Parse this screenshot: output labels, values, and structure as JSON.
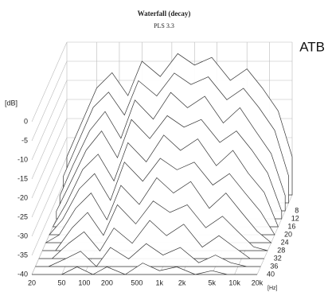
{
  "chart_data": {
    "type": "waterfall",
    "title": "Waterfall (decay)",
    "subtitle": "PLS 3.3",
    "watermark": "ATB",
    "y_label": "[dB]",
    "x_label": "[Hz]",
    "log_x": true,
    "xlim": [
      20,
      20000
    ],
    "ylim": [
      -40,
      0
    ],
    "zlim": [
      0,
      40
    ],
    "xticks": [
      20,
      50,
      100,
      200,
      500,
      {
        "value": 1000,
        "label": "1k"
      },
      {
        "value": 2000,
        "label": "2k"
      },
      {
        "value": 5000,
        "label": "5k"
      },
      {
        "value": 10000,
        "label": "10k"
      },
      {
        "value": 20000,
        "label": "20k"
      }
    ],
    "yticks": [
      0,
      -5,
      -10,
      -15,
      -20,
      -25,
      -30,
      -35,
      -40
    ],
    "zticks": [
      8,
      12,
      16,
      20,
      24,
      28,
      32,
      36,
      40
    ],
    "color": "#333333",
    "x": [
      20,
      30,
      50,
      80,
      130,
      200,
      350,
      600,
      1000,
      1700,
      3000,
      5000,
      8000,
      13000,
      20000
    ],
    "slices": [
      {
        "z": 0,
        "values": [
          -30,
          -22,
          -12,
          -8,
          -14,
          -5,
          -9,
          -3,
          -6,
          -4,
          -10,
          -7,
          -12,
          -18,
          -30
        ]
      },
      {
        "z": 4,
        "values": [
          -33,
          -25,
          -15,
          -11,
          -17,
          -8,
          -12,
          -6,
          -9,
          -7,
          -13,
          -10,
          -15,
          -21,
          -33
        ]
      },
      {
        "z": 8,
        "values": [
          -36,
          -28,
          -19,
          -14,
          -21,
          -11,
          -16,
          -9,
          -13,
          -10,
          -17,
          -13,
          -19,
          -25,
          -36
        ]
      },
      {
        "z": 12,
        "values": [
          -38,
          -31,
          -22,
          -17,
          -24,
          -14,
          -19,
          -13,
          -16,
          -14,
          -20,
          -17,
          -22,
          -28,
          -38
        ]
      },
      {
        "z": 16,
        "values": [
          -40,
          -34,
          -25,
          -21,
          -28,
          -18,
          -23,
          -16,
          -20,
          -17,
          -24,
          -20,
          -26,
          -31,
          -40
        ]
      },
      {
        "z": 20,
        "values": [
          -40,
          -36,
          -28,
          -24,
          -31,
          -21,
          -26,
          -20,
          -23,
          -21,
          -27,
          -24,
          -29,
          -34,
          -40
        ]
      },
      {
        "z": 24,
        "values": [
          -40,
          -38,
          -31,
          -27,
          -34,
          -25,
          -30,
          -23,
          -27,
          -24,
          -31,
          -27,
          -32,
          -37,
          -40
        ]
      },
      {
        "z": 28,
        "values": [
          -40,
          -40,
          -34,
          -30,
          -36,
          -28,
          -33,
          -27,
          -30,
          -28,
          -34,
          -31,
          -35,
          -39,
          -40
        ]
      },
      {
        "z": 32,
        "values": [
          -40,
          -40,
          -36,
          -33,
          -38,
          -32,
          -36,
          -30,
          -34,
          -31,
          -37,
          -34,
          -37,
          -40,
          -40
        ]
      },
      {
        "z": 36,
        "values": [
          -40,
          -40,
          -38,
          -36,
          -40,
          -35,
          -38,
          -34,
          -37,
          -35,
          -39,
          -37,
          -39,
          -40,
          -40
        ]
      },
      {
        "z": 40,
        "values": [
          -40,
          -40,
          -40,
          -38,
          -40,
          -38,
          -40,
          -37,
          -39,
          -38,
          -40,
          -39,
          -40,
          -40,
          -40
        ]
      }
    ]
  }
}
